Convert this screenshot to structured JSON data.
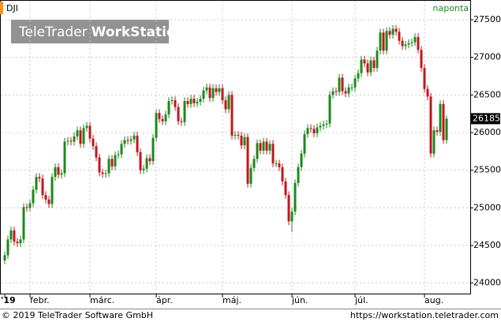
{
  "chart_data": {
    "type": "candlestick",
    "title": "DJI",
    "period": "naponta",
    "logo": {
      "brand": "TeleTrader",
      "product": "WorkStation"
    },
    "footer_left": "© 2019 TeleTrader Software GmbH",
    "footer_right": "https://workstation.teletrader.com",
    "up_color": "#1a8a1a",
    "down_color": "#c4141c",
    "grid": true,
    "ylim": [
      23860,
      27710
    ],
    "yticks": [
      24000,
      24500,
      25000,
      25500,
      26000,
      26500,
      27000,
      27500
    ],
    "categories": [
      "'19",
      null,
      null,
      null,
      null,
      null,
      null,
      null,
      "febr.",
      null,
      null,
      null,
      null,
      null,
      null,
      null,
      null,
      null,
      null,
      null,
      null,
      null,
      null,
      null,
      null,
      null,
      null,
      "márc.",
      null,
      null,
      null,
      null,
      null,
      null,
      null,
      null,
      null,
      null,
      null,
      null,
      null,
      null,
      null,
      null,
      null,
      null,
      null,
      null,
      "ápr.",
      null,
      null,
      null,
      null,
      null,
      null,
      null,
      null,
      null,
      null,
      null,
      null,
      null,
      null,
      null,
      null,
      null,
      null,
      null,
      null,
      "máj.",
      null,
      null,
      null,
      null,
      null,
      null,
      null,
      null,
      null,
      null,
      null,
      null,
      null,
      null,
      null,
      null,
      null,
      null,
      null,
      null,
      null,
      "jún.",
      null,
      null,
      null,
      null,
      null,
      null,
      null,
      null,
      null,
      null,
      null,
      null,
      null,
      null,
      null,
      null,
      null,
      null,
      null,
      "júl.",
      null,
      null,
      null,
      null,
      null,
      null,
      null,
      null,
      null,
      null,
      null,
      null,
      null,
      null,
      null,
      null,
      null,
      null,
      null,
      null,
      null,
      "aug.",
      null,
      null,
      null,
      null,
      null,
      null,
      null
    ],
    "open": [
      24300,
      24370,
      24580,
      24700,
      24550,
      24530,
      24580,
      25010,
      25000,
      25060,
      25240,
      25410,
      25390,
      25170,
      25110,
      25050,
      25410,
      25540,
      25440,
      25460,
      25880,
      25890,
      25880,
      25950,
      26030,
      25850,
      26060,
      26090,
      25920,
      25820,
      25670,
      25470,
      25450,
      25460,
      25650,
      25550,
      25700,
      25710,
      25850,
      25900,
      25890,
      25910,
      25960,
      25740,
      25500,
      25520,
      25660,
      25620,
      25930,
      26260,
      26180,
      26150,
      26240,
      26420,
      26430,
      26340,
      26150,
      26140,
      26420,
      26380,
      26450,
      26390,
      26410,
      26450,
      26560,
      26600,
      26460,
      26590,
      26540,
      26590,
      26430,
      26310,
      26500,
      25960,
      25970,
      25960,
      25830,
      25940,
      25320,
      25530,
      25650,
      25860,
      25760,
      25880,
      25760,
      25850,
      25590,
      25590,
      25540,
      25350,
      25170,
      24820,
      24950,
      25330,
      25540,
      25720,
      25980,
      26060,
      26050,
      25990,
      26070,
      26090,
      26110,
      26120,
      26500,
      26550,
      26540,
      26730,
      26550,
      26520,
      26600,
      26600,
      26720,
      26790,
      26970,
      26920,
      26800,
      26960,
      26860,
      27090,
      27330,
      27090,
      27350,
      27300,
      27380,
      27340,
      27220,
      27150,
      27170,
      27190,
      27200,
      27270,
      27100,
      26860,
      26580,
      26480,
      25720,
      26030,
      26010,
      26380,
      25900
    ],
    "high": [
      24420,
      24630,
      24750,
      24750,
      24600,
      24630,
      25060,
      25060,
      25110,
      25290,
      25460,
      25460,
      25440,
      25220,
      25160,
      25460,
      25590,
      25590,
      25510,
      25930,
      25940,
      25940,
      26000,
      26080,
      26080,
      26110,
      26140,
      26140,
      25970,
      25870,
      25720,
      25520,
      25510,
      25700,
      25700,
      25750,
      25760,
      25900,
      25950,
      25950,
      25960,
      26010,
      26010,
      25790,
      25570,
      25710,
      25710,
      25980,
      26310,
      26310,
      26230,
      26290,
      26470,
      26480,
      26480,
      26390,
      26200,
      26470,
      26470,
      26500,
      26500,
      26460,
      26500,
      26610,
      26650,
      26650,
      26640,
      26640,
      26640,
      26640,
      26480,
      26550,
      26550,
      26020,
      26020,
      26010,
      25990,
      25990,
      25580,
      25700,
      25910,
      25910,
      25930,
      25930,
      25900,
      25900,
      25640,
      25640,
      25590,
      25400,
      25220,
      25000,
      25380,
      25590,
      25770,
      26030,
      26110,
      26110,
      26100,
      26120,
      26140,
      26160,
      26170,
      26550,
      26600,
      26600,
      26780,
      26780,
      26600,
      26650,
      26650,
      26770,
      26840,
      27020,
      27020,
      26970,
      27010,
      27010,
      27140,
      27380,
      27380,
      27400,
      27400,
      27430,
      27430,
      27390,
      27270,
      27220,
      27240,
      27250,
      27320,
      27320,
      27150,
      26910,
      26630,
      26530,
      26080,
      26080,
      26430,
      26430,
      26230
    ],
    "low": [
      24250,
      24320,
      24530,
      24500,
      24480,
      24480,
      24530,
      24950,
      24950,
      25010,
      25190,
      25340,
      25120,
      25060,
      25000,
      25000,
      25360,
      25390,
      25390,
      25410,
      25830,
      25830,
      25830,
      25900,
      25800,
      25800,
      26010,
      25870,
      25770,
      25620,
      25420,
      25400,
      25400,
      25410,
      25500,
      25500,
      25650,
      25660,
      25800,
      25840,
      25840,
      25860,
      25690,
      25450,
      25450,
      25470,
      25570,
      25570,
      25880,
      26130,
      26100,
      26100,
      26190,
      26370,
      26290,
      26100,
      26090,
      26090,
      26330,
      26330,
      26340,
      26340,
      26360,
      26400,
      26510,
      26410,
      26410,
      26490,
      26490,
      26380,
      26260,
      26260,
      25910,
      25910,
      25910,
      25780,
      25780,
      25270,
      25270,
      25480,
      25600,
      25710,
      25710,
      25710,
      25710,
      25540,
      25540,
      25490,
      25300,
      25120,
      24770,
      24680,
      24900,
      25280,
      25490,
      25670,
      25930,
      26000,
      25940,
      25940,
      26020,
      26040,
      26060,
      26070,
      26450,
      26490,
      26490,
      26500,
      26470,
      26470,
      26550,
      26550,
      26670,
      26740,
      26870,
      26750,
      26750,
      26810,
      26810,
      27040,
      27040,
      27040,
      27250,
      27250,
      27290,
      27170,
      27100,
      27100,
      27120,
      27140,
      27150,
      27050,
      26810,
      26530,
      26430,
      25670,
      25670,
      25960,
      25960,
      25850,
      25850
    ],
    "close": [
      24370,
      24580,
      24700,
      24550,
      24530,
      24580,
      25010,
      25000,
      25060,
      25240,
      25410,
      25390,
      25170,
      25110,
      25050,
      25410,
      25540,
      25440,
      25460,
      25880,
      25890,
      25880,
      25950,
      26030,
      25850,
      26060,
      26090,
      25920,
      25820,
      25670,
      25470,
      25450,
      25460,
      25650,
      25550,
      25700,
      25710,
      25850,
      25900,
      25890,
      25910,
      25960,
      25740,
      25500,
      25520,
      25660,
      25620,
      25930,
      26260,
      26180,
      26150,
      26240,
      26420,
      26430,
      26340,
      26150,
      26140,
      26420,
      26380,
      26450,
      26390,
      26410,
      26450,
      26560,
      26600,
      26460,
      26590,
      26540,
      26590,
      26430,
      26310,
      26500,
      25960,
      25970,
      25960,
      25830,
      25940,
      25320,
      25530,
      25650,
      25860,
      25760,
      25880,
      25760,
      25850,
      25590,
      25590,
      25540,
      25350,
      25170,
      24820,
      24950,
      25330,
      25540,
      25720,
      25980,
      26060,
      26050,
      25990,
      26070,
      26090,
      26110,
      26120,
      26500,
      26550,
      26540,
      26730,
      26550,
      26520,
      26600,
      26600,
      26720,
      26790,
      26970,
      26920,
      26800,
      26960,
      26860,
      27090,
      27330,
      27090,
      27350,
      27300,
      27380,
      27340,
      27220,
      27150,
      27170,
      27190,
      27200,
      27270,
      27100,
      26860,
      26580,
      26480,
      25720,
      26030,
      26010,
      26380,
      25900,
      26185
    ]
  }
}
